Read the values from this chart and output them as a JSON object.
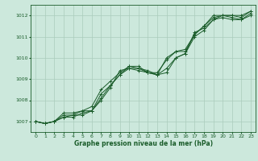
{
  "xlabel": "Graphe pression niveau de la mer (hPa)",
  "bg_color": "#cce8dc",
  "grid_color": "#aaccbb",
  "line_color": "#1a5c2a",
  "xlim": [
    -0.5,
    23.5
  ],
  "ylim": [
    1006.5,
    1012.5
  ],
  "yticks": [
    1007,
    1008,
    1009,
    1010,
    1011,
    1012
  ],
  "xticks": [
    0,
    1,
    2,
    3,
    4,
    5,
    6,
    7,
    8,
    9,
    10,
    11,
    12,
    13,
    14,
    15,
    16,
    17,
    18,
    19,
    20,
    21,
    22,
    23
  ],
  "series": [
    [
      1007.0,
      1006.9,
      1007.0,
      1007.3,
      1007.3,
      1007.5,
      1007.5,
      1008.3,
      1008.7,
      1009.2,
      1009.6,
      1009.6,
      1009.3,
      1009.3,
      1009.9,
      1010.3,
      1010.3,
      1011.1,
      1011.5,
      1011.9,
      1012.0,
      1012.0,
      1011.9,
      1012.2
    ],
    [
      1007.0,
      1006.9,
      1007.0,
      1007.2,
      1007.2,
      1007.4,
      1007.5,
      1008.0,
      1008.6,
      1009.4,
      1009.5,
      1009.5,
      1009.4,
      1009.2,
      1009.3,
      1010.0,
      1010.2,
      1011.2,
      1011.4,
      1011.8,
      1012.0,
      1011.9,
      1011.8,
      1012.1
    ],
    [
      1007.0,
      1006.9,
      1007.0,
      1007.4,
      1007.4,
      1007.5,
      1007.7,
      1008.5,
      1008.9,
      1009.3,
      1009.6,
      1009.5,
      1009.3,
      1009.2,
      1010.0,
      1010.3,
      1010.4,
      1011.1,
      1011.5,
      1012.0,
      1012.0,
      1012.0,
      1012.0,
      1012.2
    ],
    [
      1007.0,
      1006.9,
      1007.0,
      1007.2,
      1007.3,
      1007.3,
      1007.5,
      1008.1,
      1008.7,
      1009.2,
      1009.5,
      1009.4,
      1009.3,
      1009.2,
      1009.5,
      1010.0,
      1010.2,
      1011.0,
      1011.3,
      1011.8,
      1011.9,
      1011.8,
      1011.8,
      1012.0
    ]
  ]
}
